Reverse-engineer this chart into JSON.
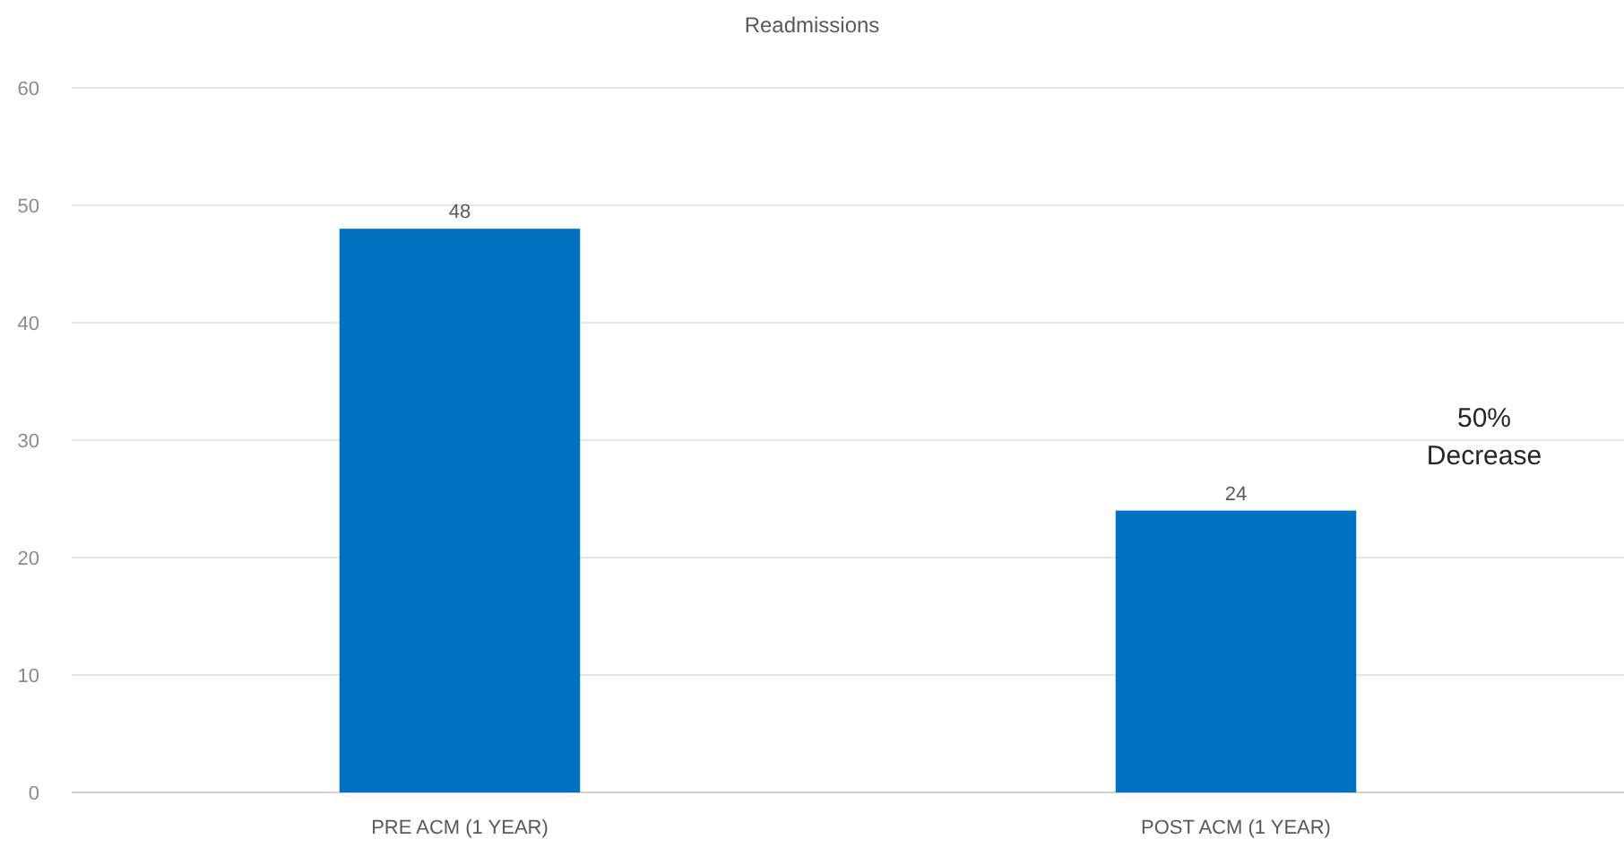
{
  "chart_data": {
    "type": "bar",
    "title": "Readmissions",
    "categories": [
      "PRE ACM (1 YEAR)",
      "POST ACM (1 YEAR)"
    ],
    "values": [
      48,
      24
    ],
    "color": "#0070c0",
    "ylim": [
      0,
      60
    ],
    "yticks": [
      0,
      10,
      20,
      30,
      40,
      50,
      60
    ],
    "grid": "y",
    "data_labels": true,
    "annotations": [
      "50% Decrease"
    ]
  }
}
